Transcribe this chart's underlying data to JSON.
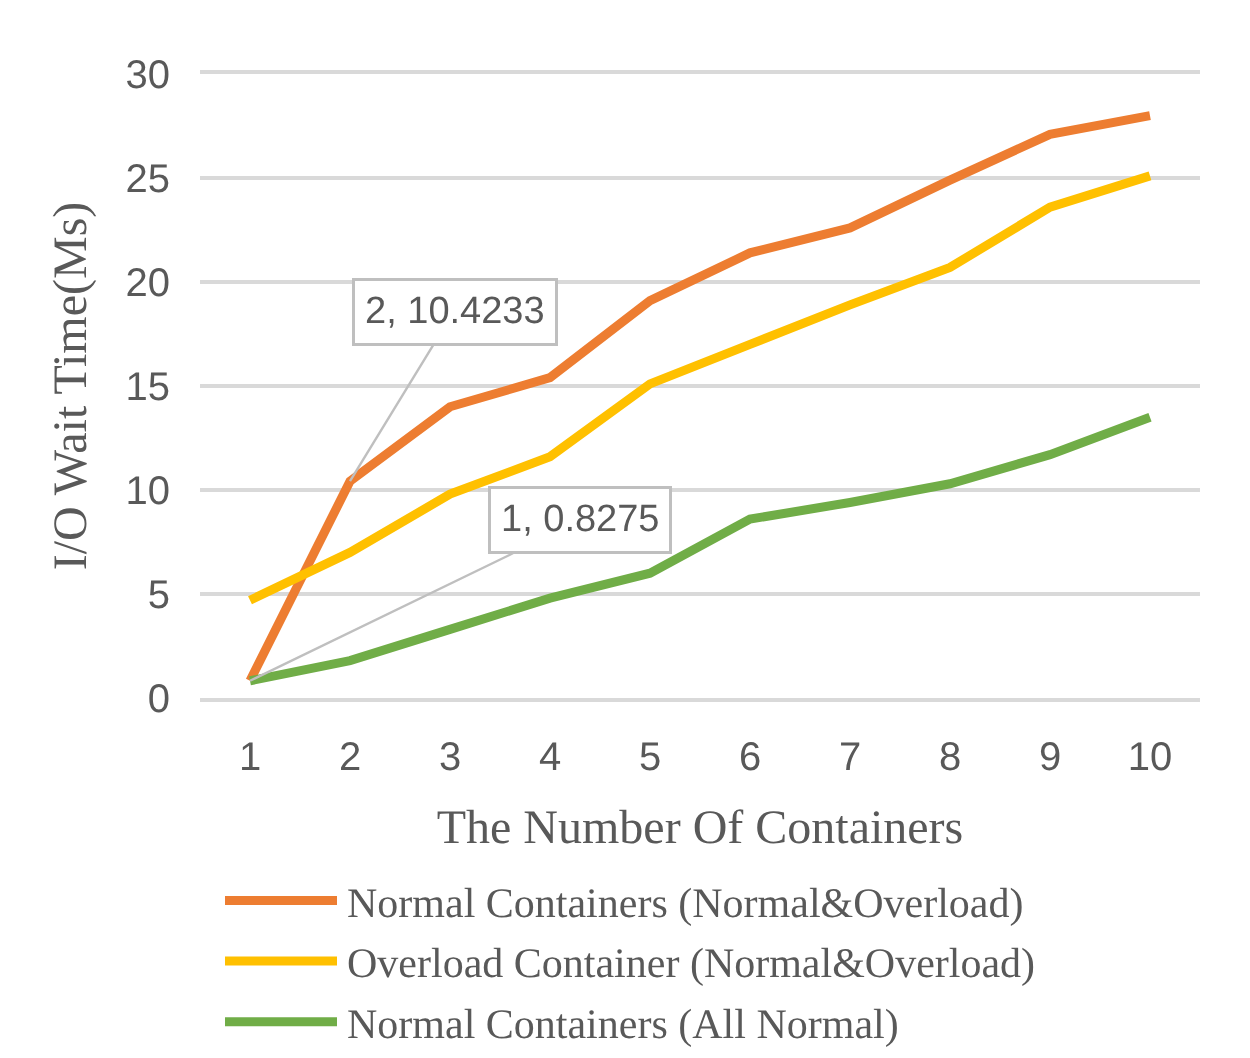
{
  "chart_data": {
    "type": "line",
    "xlabel": "The Number Of Containers",
    "ylabel": "I/O Wait Time(Ms)",
    "x": [
      1,
      2,
      3,
      4,
      5,
      6,
      7,
      8,
      9,
      10
    ],
    "xlim": [
      0.5,
      10.5
    ],
    "xticks": [
      1,
      2,
      3,
      4,
      5,
      6,
      7,
      8,
      9,
      10
    ],
    "ylim": [
      0,
      30
    ],
    "yticks": [
      0,
      5,
      10,
      15,
      20,
      25,
      30
    ],
    "grid": "y",
    "legend": "bottom",
    "marker": "none",
    "line_style": "solid",
    "series": [
      {
        "name": "Normal Containers (Normal&Overload)",
        "color": "#ed7d31",
        "values": [
          0.8275,
          10.4233,
          14.0,
          15.4,
          19.1,
          21.4,
          22.6,
          24.9,
          27.1,
          28.0
        ]
      },
      {
        "name": "Overload Container (Normal&Overload)",
        "color": "#ffc000",
        "values": [
          4.7,
          7.0,
          9.8,
          11.6,
          15.1,
          17.0,
          18.9,
          20.7,
          23.6,
          25.1
        ]
      },
      {
        "name": "Normal Containers (All Normal)",
        "color": "#70ad47",
        "values": [
          0.8275,
          1.8,
          3.3,
          4.8,
          6.0,
          8.6,
          9.4,
          10.3,
          11.7,
          13.5
        ]
      }
    ],
    "annotations": [
      {
        "text": "2, 10.4233",
        "x": 2,
        "y": 10.4233
      },
      {
        "text": "1, 0.8275",
        "x": 1,
        "y": 0.8275
      }
    ]
  }
}
